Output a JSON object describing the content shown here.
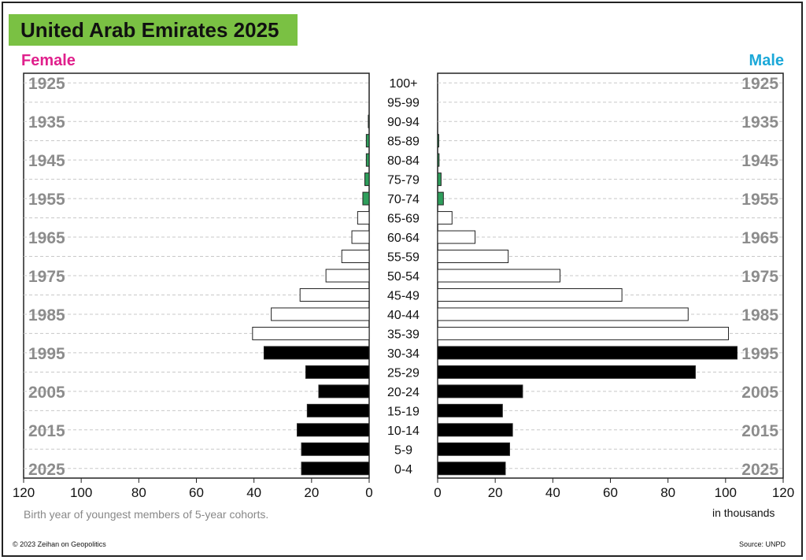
{
  "title": "United Arab Emirates 2025",
  "female_label": "Female",
  "male_label": "Male",
  "axis_note": "Birth year of youngest members of 5-year cohorts.",
  "unit_note": "in thousands",
  "copyright": "© 2023 Zeihan on Geopolitics",
  "source": "Source: UNPD",
  "colors": {
    "title_bg": "#7ac143",
    "female": "#e0208c",
    "male": "#1ba8d8",
    "old": "#2e9e5b",
    "middle": "#ffffff",
    "young": "#000000",
    "year": "#8c8c8c"
  },
  "chart_data": {
    "type": "bar",
    "orientation": "horizontal-population-pyramid",
    "categories": [
      "100+",
      "95-99",
      "90-94",
      "85-89",
      "80-84",
      "75-79",
      "70-74",
      "65-69",
      "60-64",
      "55-59",
      "50-54",
      "45-49",
      "40-44",
      "35-39",
      "30-34",
      "25-29",
      "20-24",
      "15-19",
      "10-14",
      "5-9",
      "0-4"
    ],
    "birth_years": [
      "1925",
      "1935",
      "1945",
      "1955",
      "1965",
      "1975",
      "1985",
      "1995",
      "2005",
      "2015",
      "2025"
    ],
    "series": [
      {
        "name": "Female",
        "values": [
          0,
          0,
          0.3,
          1,
          1,
          1.5,
          2.2,
          4,
          6,
          9.5,
          15,
          24,
          34,
          40.5,
          36.5,
          22,
          17.5,
          21.5,
          25,
          23.5,
          23.5
        ]
      },
      {
        "name": "Male",
        "values": [
          0,
          0,
          0,
          0.4,
          0.5,
          1.2,
          2,
          5,
          13,
          24.5,
          42.5,
          64,
          87,
          101,
          104,
          89.5,
          29.5,
          22.5,
          26,
          25,
          23.5
        ]
      }
    ],
    "bar_groups": [
      "none",
      "none",
      "old",
      "old",
      "old",
      "old",
      "old",
      "middle",
      "middle",
      "middle",
      "middle",
      "middle",
      "middle",
      "middle",
      "young",
      "young",
      "young",
      "young",
      "young",
      "young",
      "young"
    ],
    "xlim": [
      0,
      120
    ],
    "x_ticks": [
      "120",
      "100",
      "80",
      "60",
      "40",
      "20",
      "0"
    ],
    "x_ticks_right": [
      "0",
      "20",
      "40",
      "60",
      "80",
      "100",
      "120"
    ],
    "grid": true
  }
}
